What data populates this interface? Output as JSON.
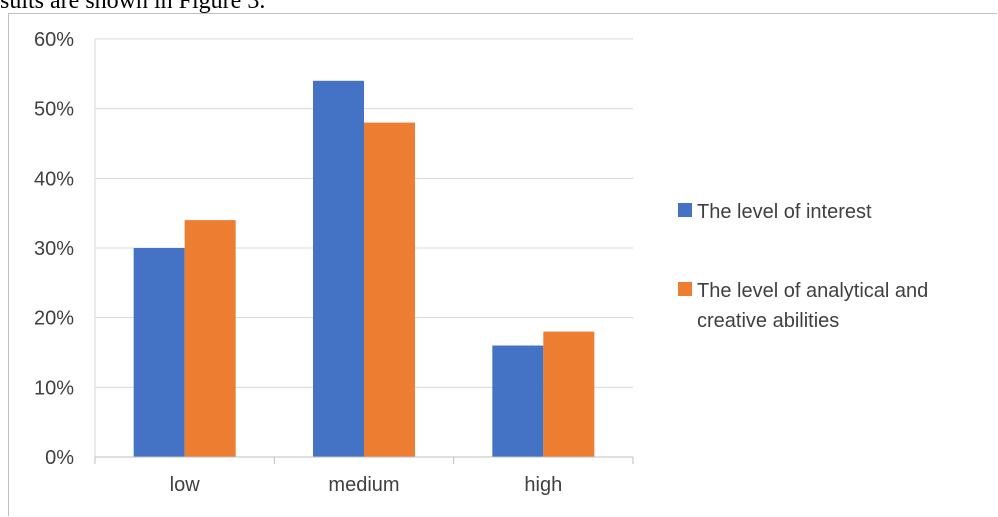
{
  "page": {
    "top_text": "sults are shown in Figure 3."
  },
  "chart_data": {
    "type": "bar",
    "categories": [
      "low",
      "medium",
      "high"
    ],
    "series": [
      {
        "name": "The level of interest",
        "values": [
          30,
          54,
          16
        ],
        "color": "#4472c4"
      },
      {
        "name": "The level of analytical and creative abilities",
        "values": [
          34,
          48,
          18
        ],
        "color": "#ed7d31"
      }
    ],
    "legend_lines": [
      [
        "The level of interest"
      ],
      [
        "The level of analytical and",
        "creative abilities"
      ]
    ],
    "yticks": [
      "0%",
      "10%",
      "20%",
      "30%",
      "40%",
      "50%",
      "60%"
    ],
    "ylim": [
      0,
      60
    ],
    "grid": true,
    "legend_position": "right",
    "title": "",
    "xlabel": "",
    "ylabel": ""
  }
}
